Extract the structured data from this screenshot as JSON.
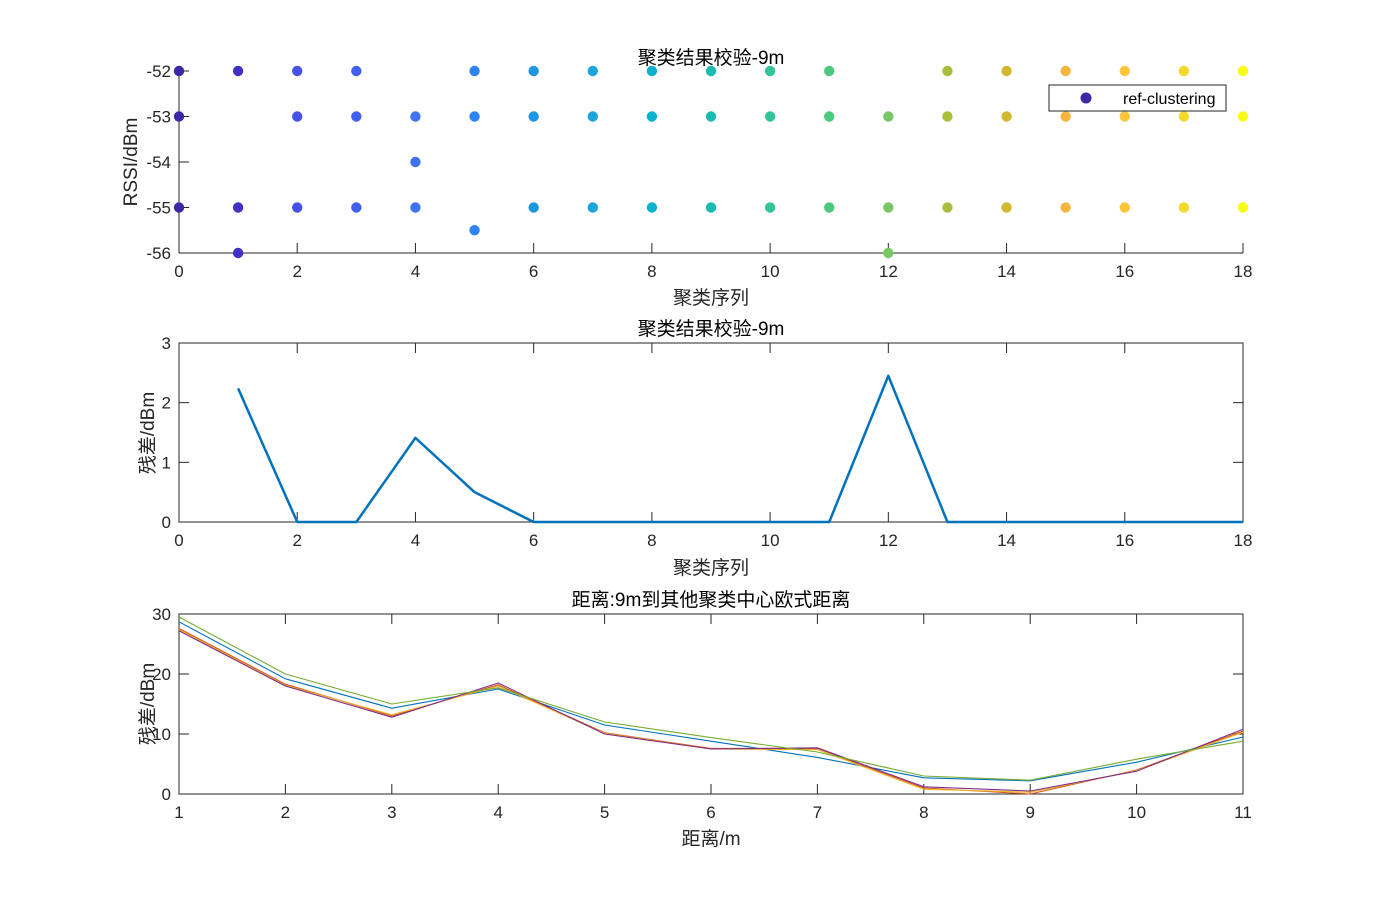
{
  "chart_data": [
    {
      "type": "scatter",
      "title": "聚类结果校验-9m",
      "xlabel": "聚类序列",
      "ylabel": "RSSI/dBm",
      "xlim": [
        0,
        18
      ],
      "ylim": [
        -56,
        -52
      ],
      "xticks": [
        0,
        2,
        4,
        6,
        8,
        10,
        12,
        14,
        16,
        18
      ],
      "yticks": [
        -56,
        -55,
        -54,
        -53,
        -52
      ],
      "grid": false,
      "box": false,
      "colormap": "parula",
      "colors": [
        "#3E26A8",
        "#4131C4",
        "#4651E6",
        "#4260ED",
        "#3F73F4",
        "#2D84F5",
        "#1F96E0",
        "#1BA5DA",
        "#0BB2CE",
        "#1ABCB0",
        "#33C49A",
        "#4EC87E",
        "#78C664",
        "#A9BF3B",
        "#D2B82C",
        "#F6B63D",
        "#FEC43A",
        "#F3DA2A",
        "#F9FB14"
      ],
      "legend": {
        "entries": [
          "ref-clustering"
        ],
        "location": "top-right",
        "marker": "filled-circle",
        "marker_color": "#3E26A8"
      },
      "series": [
        {
          "name": "ref-clustering",
          "x": [
            0,
            0,
            0,
            1,
            1,
            1,
            2,
            2,
            2,
            3,
            3,
            3,
            4,
            4,
            4,
            5,
            5,
            5,
            6,
            6,
            6,
            7,
            7,
            7,
            8,
            8,
            8,
            9,
            9,
            9,
            10,
            10,
            10,
            11,
            11,
            11,
            12,
            12,
            12,
            13,
            13,
            13,
            14,
            14,
            14,
            15,
            15,
            15,
            16,
            16,
            16,
            17,
            17,
            17,
            18,
            18,
            18
          ],
          "y": [
            -52,
            -53,
            -55,
            -52,
            -55,
            -56,
            -52,
            -53,
            -55,
            -52,
            -53,
            -55,
            -53,
            -54,
            -55,
            -52,
            -53,
            -55.5,
            -52,
            -53,
            -55,
            -52,
            -53,
            -55,
            -52,
            -53,
            -55,
            -52,
            -53,
            -55,
            -52,
            -53,
            -55,
            -52,
            -53,
            -55,
            -53,
            -55,
            -56,
            -52,
            -53,
            -55,
            -52,
            -53,
            -55,
            -52,
            -53,
            -55,
            -52,
            -53,
            -55,
            -52,
            -53,
            -55,
            -52,
            -53,
            -55
          ]
        }
      ]
    },
    {
      "type": "line",
      "title": "聚类结果校验-9m",
      "xlabel": "聚类序列",
      "ylabel": "残差/dBm",
      "xlim": [
        0,
        18
      ],
      "ylim": [
        0,
        3
      ],
      "xticks": [
        0,
        2,
        4,
        6,
        8,
        10,
        12,
        14,
        16,
        18
      ],
      "yticks": [
        0,
        1,
        2,
        3
      ],
      "grid": false,
      "box": true,
      "x": [
        1,
        2,
        3,
        4,
        5,
        6,
        7,
        8,
        9,
        10,
        11,
        12,
        13,
        14,
        15,
        16,
        17,
        18
      ],
      "series": [
        {
          "color": "#0072BD",
          "values": [
            2.24,
            0,
            0,
            1.41,
            0.5,
            0,
            0,
            0,
            0,
            0,
            0,
            2.45,
            0,
            0,
            0,
            0,
            0,
            0
          ]
        }
      ]
    },
    {
      "type": "line",
      "title": "距离:9m到其他聚类中心欧式距离",
      "xlabel": "距离/m",
      "ylabel": "残差/dBm",
      "xlim": [
        1,
        11
      ],
      "ylim": [
        0,
        30
      ],
      "xticks": [
        1,
        2,
        3,
        4,
        5,
        6,
        7,
        8,
        9,
        10,
        11
      ],
      "yticks": [
        0,
        10,
        20,
        30
      ],
      "grid": false,
      "box": true,
      "x": [
        1,
        2,
        3,
        4,
        5,
        6,
        7,
        8,
        9,
        10,
        11
      ],
      "series": [
        {
          "color": "#0072BD",
          "values": [
            28.7,
            19.2,
            14.3,
            17.5,
            11.5,
            8.8,
            6.1,
            2.7,
            2.2,
            5.3,
            9.5
          ]
        },
        {
          "color": "#D95319",
          "values": [
            27.6,
            18.3,
            13.0,
            18.2,
            10.2,
            7.6,
            7.6,
            1.0,
            0.0,
            4.0,
            10.5
          ]
        },
        {
          "color": "#EDB120",
          "values": [
            27.4,
            18.1,
            13.2,
            18.0,
            10.1,
            7.5,
            7.4,
            0.8,
            0.3,
            3.9,
            10.3
          ]
        },
        {
          "color": "#7E2F8E",
          "values": [
            27.2,
            18.0,
            12.8,
            18.5,
            10.0,
            7.5,
            7.7,
            1.2,
            0.5,
            3.8,
            10.8
          ]
        },
        {
          "color": "#77AC30",
          "values": [
            29.5,
            20.0,
            15.0,
            17.7,
            12.0,
            9.4,
            7.0,
            3.0,
            2.3,
            5.8,
            8.8
          ]
        }
      ]
    }
  ]
}
